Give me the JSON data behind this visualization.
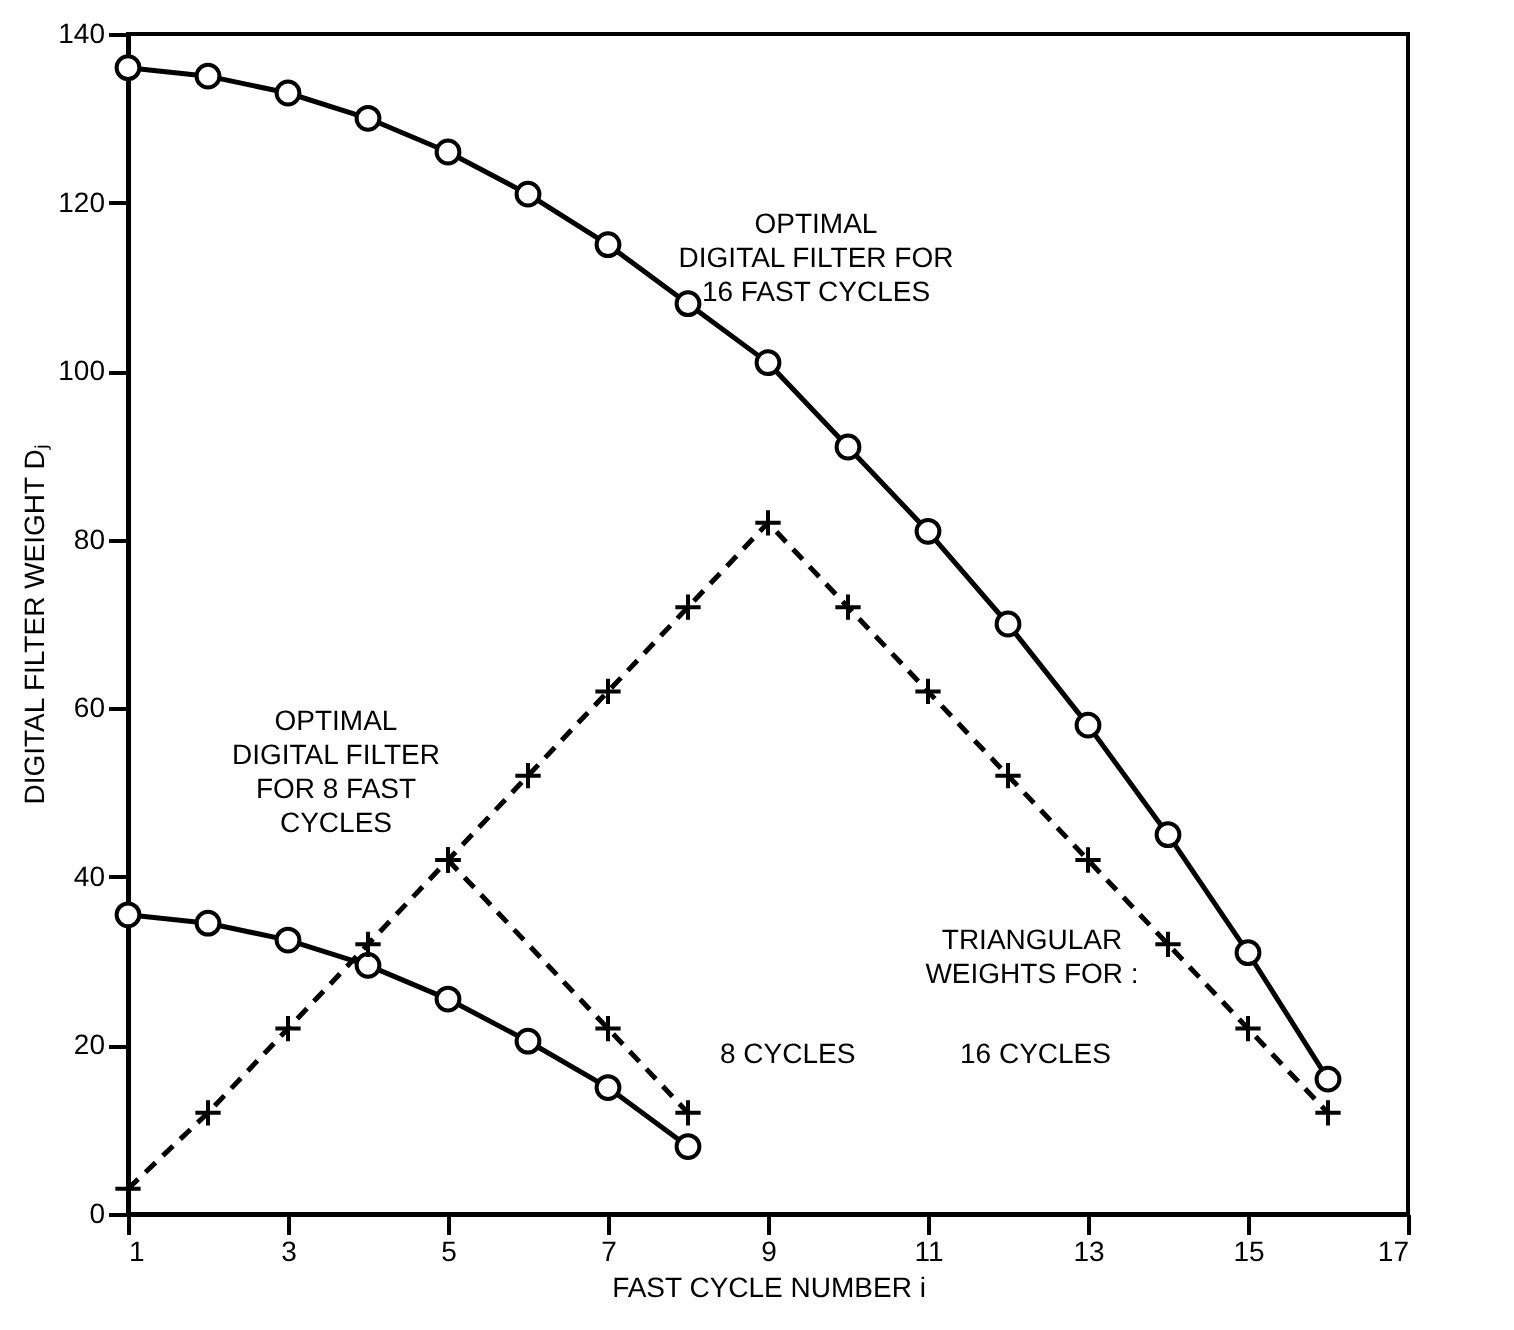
{
  "chart_data": {
    "type": "line",
    "xlabel": "FAST CYCLE NUMBER i",
    "ylabel": "DIGITAL FILTER WEIGHT Dⱼ",
    "xlim": [
      1,
      17
    ],
    "xticks": [
      1,
      3,
      5,
      7,
      9,
      11,
      13,
      15,
      17
    ],
    "ylim": [
      0,
      140
    ],
    "yticks": [
      0,
      20,
      40,
      60,
      80,
      100,
      120,
      140
    ],
    "grid": false,
    "series": [
      {
        "color": "#000000",
        "marker": "circle",
        "line_style": "solid",
        "x": [
          1,
          2,
          3,
          4,
          5,
          6,
          7,
          8,
          9,
          10,
          11,
          12,
          13,
          14,
          15,
          16
        ],
        "values": [
          136,
          135,
          133,
          130,
          126,
          121,
          115,
          108,
          101,
          91,
          81,
          70,
          58,
          45,
          31,
          16
        ]
      },
      {
        "color": "#000000",
        "marker": "circle",
        "line_style": "solid",
        "x": [
          1,
          2,
          3,
          4,
          5,
          6,
          7,
          8
        ],
        "values": [
          35.5,
          34.5,
          32.5,
          29.5,
          25.5,
          20.5,
          15,
          8
        ]
      },
      {
        "color": "#000000",
        "marker": "cross",
        "line_style": "dashed",
        "x": [
          1,
          2,
          3,
          4,
          5,
          6,
          7,
          8,
          9,
          10,
          11,
          12,
          13,
          14,
          15,
          16
        ],
        "values": [
          3,
          12,
          22,
          32,
          42,
          52,
          62,
          72,
          82,
          72,
          62,
          52,
          42,
          32,
          22,
          12
        ]
      },
      {
        "color": "#000000",
        "marker": "cross",
        "line_style": "dashed",
        "x": [
          5,
          7,
          8
        ],
        "values": [
          42,
          22,
          12
        ]
      }
    ],
    "annotations": [
      "OPTIMAL\nDIGITAL FILTER FOR\n16 FAST CYCLES",
      "OPTIMAL\nDIGITAL FILTER\nFOR 8 FAST\nCYCLES",
      "TRIANGULAR\nWEIGHTS FOR :",
      "8 CYCLES",
      "16 CYCLES"
    ]
  }
}
